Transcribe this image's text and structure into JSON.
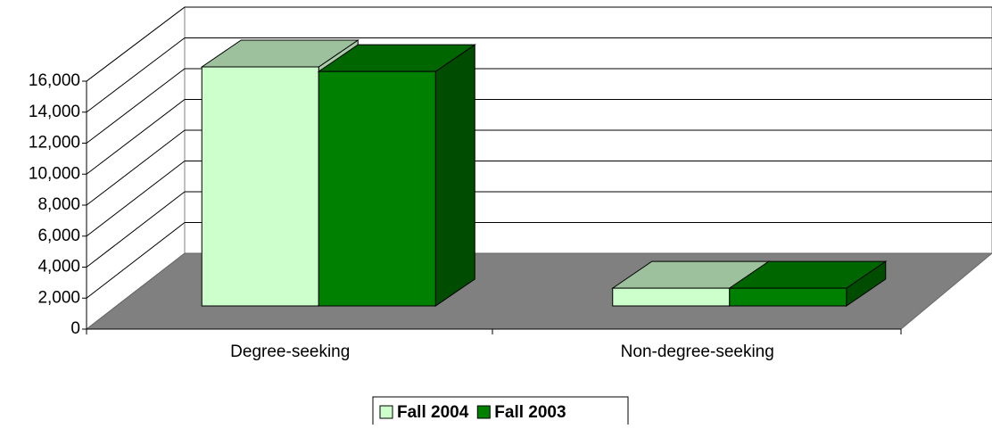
{
  "chart_data": {
    "type": "bar3d",
    "categories": [
      "Degree-seeking",
      "Non-degree-seeking"
    ],
    "series": [
      {
        "name": "Fall 2004",
        "color": "#ccffcc",
        "top": "#9dc09d",
        "side": "#a8cca8",
        "values": [
          15500,
          1150
        ]
      },
      {
        "name": "Fall 2003",
        "color": "#008000",
        "top": "#006600",
        "side": "#004c00",
        "values": [
          15200,
          1150
        ]
      }
    ],
    "ylim": [
      0,
      16000
    ],
    "yticks": [
      0,
      {
        "value": 2000,
        "label": "2,000"
      },
      {
        "value": 4000,
        "label": "4,000"
      },
      {
        "value": 6000,
        "label": "6,000"
      },
      {
        "value": 8000,
        "label": "8,000"
      },
      {
        "value": 10000,
        "label": "10,000"
      },
      {
        "value": 12000,
        "label": "12,000"
      },
      {
        "value": 14000,
        "label": "14,000"
      },
      {
        "value": 16000,
        "label": "16,000"
      }
    ],
    "grid": true,
    "legend": "bottom"
  }
}
